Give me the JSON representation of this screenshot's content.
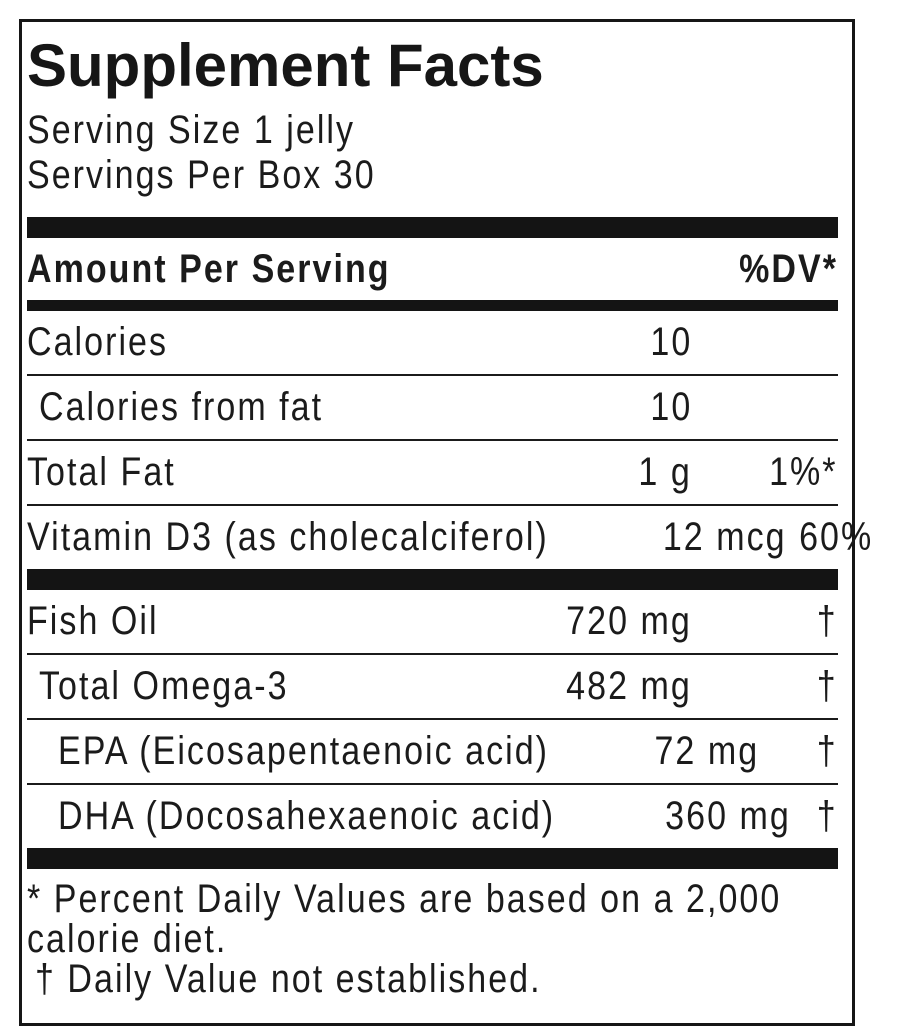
{
  "label": {
    "title": "Supplement Facts",
    "serving_info": {
      "serving_size": "Serving Size 1 jelly",
      "servings_per_box": "Servings Per Box 30"
    },
    "columns": {
      "header_left": "Amount Per Serving",
      "header_right": "%DV*"
    },
    "rows": [
      {
        "name": "Calories",
        "amount": "10",
        "dv": "",
        "indent": 0
      },
      {
        "name": "Calories from fat",
        "amount": "10",
        "dv": "",
        "indent": 1
      },
      {
        "name": "Total Fat",
        "amount": "1 g",
        "dv": "1%*",
        "indent": 0
      },
      {
        "name": "Vitamin D3 (as cholecalciferol)",
        "amount": "12 mcg",
        "dv": "60%",
        "indent": 0
      },
      {
        "name": "Fish Oil",
        "amount": "720 mg",
        "dv": "†",
        "indent": 0
      },
      {
        "name": "Total Omega-3",
        "amount": "482 mg",
        "dv": "†",
        "indent": 1
      },
      {
        "name": "EPA (Eicosapentaenoic acid)",
        "amount": "72 mg",
        "dv": "†",
        "indent": 2
      },
      {
        "name": "DHA (Docosahexaenoic acid)",
        "amount": "360 mg",
        "dv": "†",
        "indent": 2
      }
    ],
    "footnotes": {
      "line1": "* Percent Daily Values are based on a 2,000",
      "line2": "calorie diet.",
      "line3": "† Daily Value not established."
    },
    "colors": {
      "text": "#1b1b1b",
      "bar": "#141414",
      "background": "#ffffff"
    }
  }
}
